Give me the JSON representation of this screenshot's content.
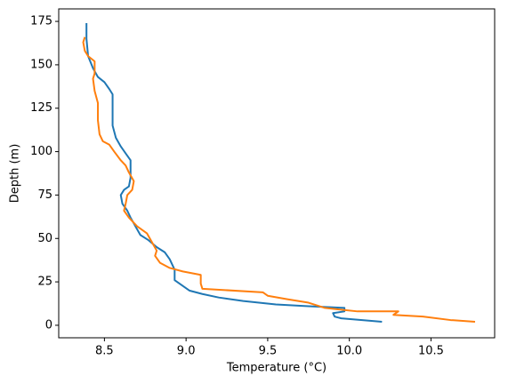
{
  "chart_data": {
    "type": "line",
    "xlabel": "Temperature (°C)",
    "ylabel": "Depth (m)",
    "xlim": [
      8.22,
      10.89
    ],
    "ylim": [
      -7.2,
      182.2
    ],
    "xticks": [
      8.5,
      {
        "value": 9,
        "label": "9.0"
      },
      9.5,
      {
        "value": 10,
        "label": "10.0"
      },
      10.5
    ],
    "yticks": [
      0,
      25,
      50,
      75,
      100,
      125,
      150,
      175
    ],
    "grid": false,
    "series": [
      {
        "color": "#1f77b4",
        "x": [
          8.39,
          8.39,
          8.4,
          8.43,
          8.46,
          8.5,
          8.53,
          8.55,
          8.55,
          8.55,
          8.57,
          8.6,
          8.63,
          8.66,
          8.66,
          8.65,
          8.62,
          8.6,
          8.61,
          8.64,
          8.66,
          8.69,
          8.72,
          8.77,
          8.82,
          8.87,
          8.9,
          8.93,
          8.93,
          8.96,
          9.02,
          9.1,
          9.2,
          9.35,
          9.55,
          9.75,
          9.97,
          9.97,
          9.9,
          9.91,
          9.95,
          10.2
        ],
        "values": [
          174,
          165,
          155,
          148,
          143,
          140,
          136,
          133,
          125,
          115,
          108,
          103,
          99,
          95,
          85,
          80,
          78,
          75,
          70,
          66,
          62,
          57,
          52,
          49,
          45,
          42,
          38,
          32,
          26,
          24,
          20,
          18,
          16,
          14,
          12,
          11,
          10,
          8,
          7,
          5,
          4,
          2
        ]
      },
      {
        "color": "#ff7f0e",
        "x": [
          8.38,
          8.37,
          8.38,
          8.4,
          8.44,
          8.44,
          8.43,
          8.44,
          8.46,
          8.46,
          8.47,
          8.49,
          8.53,
          8.56,
          8.6,
          8.63,
          8.65,
          8.68,
          8.67,
          8.64,
          8.63,
          8.62,
          8.65,
          8.7,
          8.76,
          8.79,
          8.82,
          8.81,
          8.84,
          8.9,
          8.98,
          9.09,
          9.09,
          9.1,
          9.47,
          9.5,
          9.62,
          9.75,
          9.85,
          10.05,
          10.3,
          10.27,
          10.45,
          10.62,
          10.77
        ],
        "values": [
          166,
          163,
          158,
          155,
          152,
          145,
          142,
          135,
          128,
          118,
          110,
          106,
          104,
          100,
          95,
          92,
          88,
          83,
          78,
          75,
          70,
          66,
          62,
          57,
          53,
          48,
          43,
          40,
          36,
          33,
          31,
          29,
          24,
          21,
          19,
          17,
          15,
          13,
          10,
          8,
          8,
          6,
          5,
          3,
          2
        ]
      }
    ]
  }
}
